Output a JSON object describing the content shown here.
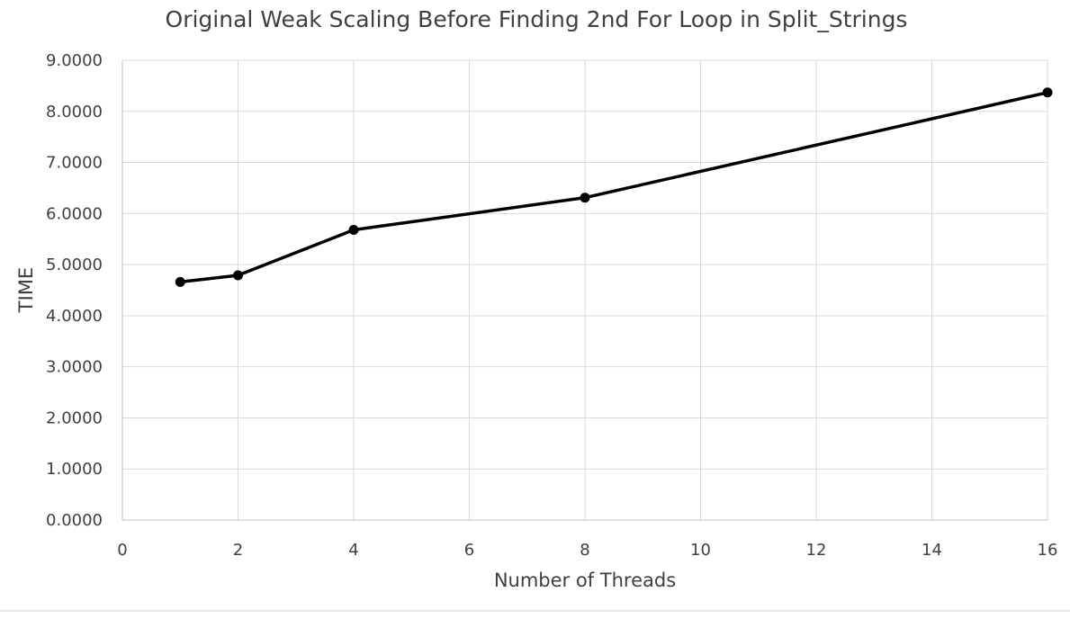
{
  "chart_data": {
    "type": "line",
    "title": "Original Weak Scaling Before Finding 2nd For Loop in Split_Strings",
    "xlabel": "Number of Threads",
    "ylabel": "TIME",
    "xlim": [
      0,
      16
    ],
    "ylim": [
      0,
      9
    ],
    "x_ticks": [
      0,
      2,
      4,
      6,
      8,
      10,
      12,
      14,
      16
    ],
    "x_tick_labels": [
      "0",
      "2",
      "4",
      "6",
      "8",
      "10",
      "12",
      "14",
      "16"
    ],
    "y_ticks": [
      0,
      1,
      2,
      3,
      4,
      5,
      6,
      7,
      8,
      9
    ],
    "y_tick_labels": [
      "0.0000",
      "1.0000",
      "2.0000",
      "3.0000",
      "4.0000",
      "5.0000",
      "6.0000",
      "7.0000",
      "8.0000",
      "9.0000"
    ],
    "grid": true,
    "legend": "none",
    "series": [
      {
        "color": "#000000",
        "x": [
          1,
          2,
          4,
          8,
          16
        ],
        "y": [
          4.66,
          4.79,
          5.68,
          6.31,
          8.37
        ]
      }
    ]
  }
}
